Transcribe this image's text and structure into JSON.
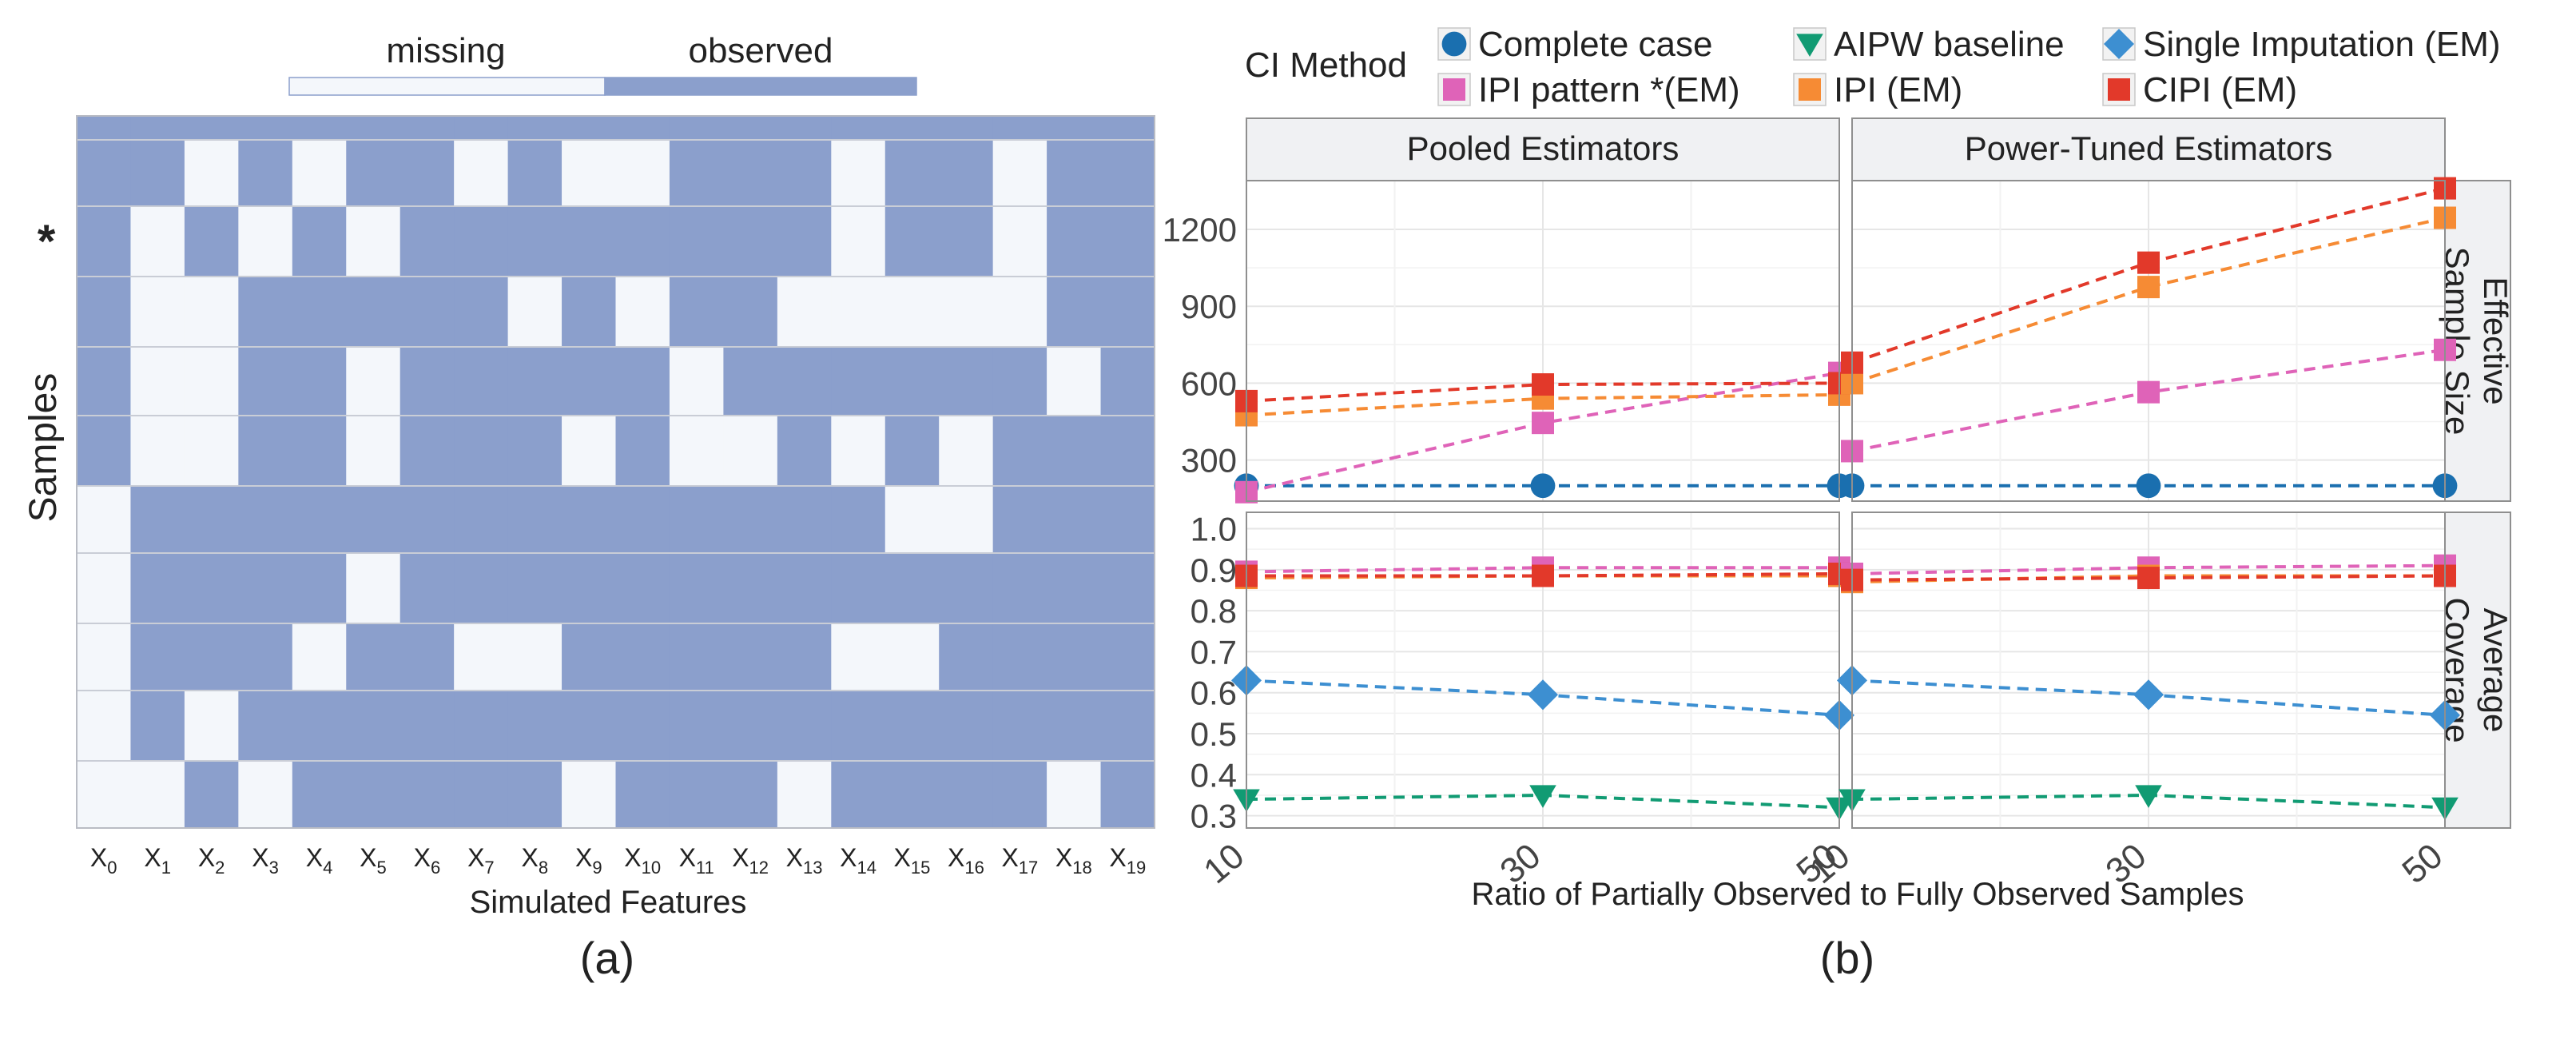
{
  "panel_a": {
    "label": "(a)",
    "legend": {
      "missing_label": "missing",
      "observed_label": "observed"
    },
    "ylabel": "Samples",
    "row_marker": "*",
    "xlabel": "Simulated Features",
    "features": [
      "X0",
      "X1",
      "X2",
      "X3",
      "X4",
      "X5",
      "X6",
      "X7",
      "X8",
      "X9",
      "X10",
      "X11",
      "X12",
      "X13",
      "X14",
      "X15",
      "X16",
      "X17",
      "X18",
      "X19"
    ],
    "colors": {
      "missing": "#f4f7fb",
      "observed": "#8b9fcc"
    }
  },
  "panel_b": {
    "label": "(b)",
    "legend_title": "CI Method",
    "xlabel": "Ratio of Partially Observed to Fully Observed Samples",
    "facet_cols": [
      "Pooled Estimators",
      "Power-Tuned Estimators"
    ],
    "facet_rows": [
      [
        "Effective",
        "Sample Size"
      ],
      [
        "Average",
        "Coverage"
      ]
    ]
  },
  "chart_data": [
    {
      "type": "heatmap",
      "title": "",
      "xlabel": "Simulated Features",
      "ylabel": "Samples",
      "x": [
        "X0",
        "X1",
        "X2",
        "X3",
        "X4",
        "X5",
        "X6",
        "X7",
        "X8",
        "X9",
        "X10",
        "X11",
        "X12",
        "X13",
        "X14",
        "X15",
        "X16",
        "X17",
        "X18",
        "X19"
      ],
      "legend": [
        "missing",
        "observed"
      ],
      "value_legend": {
        "0": "missing",
        "1": "observed"
      },
      "marked_row": 2,
      "values": [
        [
          1,
          1,
          1,
          1,
          1,
          1,
          1,
          1,
          1,
          1,
          1,
          1,
          1,
          1,
          1,
          1,
          1,
          1,
          1,
          1
        ],
        [
          1,
          1,
          0,
          1,
          0,
          1,
          1,
          0,
          1,
          0,
          0,
          1,
          1,
          1,
          0,
          1,
          1,
          0,
          1,
          1
        ],
        [
          1,
          0,
          1,
          0,
          1,
          0,
          1,
          1,
          1,
          1,
          1,
          1,
          1,
          1,
          0,
          1,
          1,
          0,
          1,
          1
        ],
        [
          1,
          0,
          0,
          1,
          1,
          1,
          1,
          1,
          0,
          1,
          0,
          1,
          1,
          0,
          0,
          0,
          0,
          0,
          1,
          1
        ],
        [
          1,
          0,
          0,
          1,
          1,
          0,
          1,
          1,
          1,
          1,
          1,
          0,
          1,
          1,
          1,
          1,
          1,
          1,
          0,
          1
        ],
        [
          1,
          0,
          0,
          1,
          1,
          0,
          1,
          1,
          1,
          0,
          1,
          0,
          0,
          1,
          0,
          1,
          0,
          1,
          1,
          1
        ],
        [
          0,
          1,
          1,
          1,
          1,
          1,
          1,
          1,
          1,
          1,
          1,
          1,
          1,
          1,
          1,
          0,
          0,
          1,
          1,
          1
        ],
        [
          0,
          1,
          1,
          1,
          1,
          0,
          1,
          1,
          1,
          1,
          1,
          1,
          1,
          1,
          1,
          1,
          1,
          1,
          1,
          1
        ],
        [
          0,
          1,
          1,
          1,
          0,
          1,
          1,
          0,
          0,
          1,
          1,
          1,
          1,
          1,
          0,
          0,
          1,
          1,
          1,
          1
        ],
        [
          0,
          1,
          0,
          1,
          1,
          1,
          1,
          1,
          1,
          1,
          1,
          1,
          1,
          1,
          1,
          1,
          1,
          1,
          1,
          1
        ],
        [
          0,
          0,
          1,
          0,
          1,
          1,
          1,
          1,
          1,
          0,
          1,
          1,
          1,
          0,
          1,
          1,
          1,
          1,
          0,
          1
        ]
      ]
    },
    {
      "type": "line",
      "title": "",
      "xlabel": "Ratio of Partially Observed to Fully Observed Samples",
      "x": [
        10,
        30,
        50
      ],
      "facets": {
        "cols": [
          "Pooled Estimators",
          "Power-Tuned Estimators"
        ],
        "rows": [
          "Effective Sample Size",
          "Average Coverage"
        ]
      },
      "legend_title": "CI Method",
      "legend_position": "top",
      "grid": true,
      "y_ranges": {
        "Effective Sample Size": [
          140,
          1390
        ],
        "Average Coverage": [
          0.27,
          1.04
        ]
      },
      "y_ticks": {
        "Effective Sample Size": [
          300,
          600,
          900,
          1200
        ],
        "Average Coverage": [
          0.3,
          0.4,
          0.5,
          0.6,
          0.7,
          0.8,
          0.9,
          1.0
        ]
      },
      "x_ticks": [
        10,
        30,
        50
      ],
      "series": [
        {
          "name": "Complete case",
          "color": "#1a6faf",
          "marker": "circle",
          "values": {
            "Effective Sample Size": {
              "Pooled Estimators": [
                200,
                200,
                200
              ],
              "Power-Tuned Estimators": [
                200,
                200,
                200
              ]
            }
          }
        },
        {
          "name": "IPI pattern *(EM)",
          "color": "#df63b8",
          "marker": "square",
          "values": {
            "Effective Sample Size": {
              "Pooled Estimators": [
                175,
                445,
                640
              ],
              "Power-Tuned Estimators": [
                335,
                565,
                730
              ]
            },
            "Average Coverage": {
              "Pooled Estimators": [
                0.895,
                0.905,
                0.905
              ],
              "Power-Tuned Estimators": [
                0.89,
                0.905,
                0.91
              ]
            }
          }
        },
        {
          "name": "AIPW baseline",
          "color": "#119b73",
          "marker": "triangle-down",
          "values": {
            "Average Coverage": {
              "Pooled Estimators": [
                0.34,
                0.35,
                0.32
              ],
              "Power-Tuned Estimators": [
                0.34,
                0.35,
                0.32
              ]
            }
          }
        },
        {
          "name": "IPI (EM)",
          "color": "#f68b34",
          "marker": "square",
          "values": {
            "Effective Sample Size": {
              "Pooled Estimators": [
                475,
                540,
                555
              ],
              "Power-Tuned Estimators": [
                600,
                975,
                1245
              ]
            },
            "Average Coverage": {
              "Pooled Estimators": [
                0.88,
                0.885,
                0.885
              ],
              "Power-Tuned Estimators": [
                0.87,
                0.885,
                0.885
              ]
            }
          }
        },
        {
          "name": "Single Imputation (EM)",
          "color": "#3d8fd1",
          "marker": "diamond",
          "values": {
            "Average Coverage": {
              "Pooled Estimators": [
                0.63,
                0.595,
                0.545
              ],
              "Power-Tuned Estimators": [
                0.63,
                0.595,
                0.545
              ]
            }
          }
        },
        {
          "name": "CIPI (EM)",
          "color": "#e2392a",
          "marker": "square",
          "values": {
            "Effective Sample Size": {
              "Pooled Estimators": [
                530,
                595,
                600
              ],
              "Power-Tuned Estimators": [
                680,
                1070,
                1360
              ]
            },
            "Average Coverage": {
              "Pooled Estimators": [
                0.885,
                0.885,
                0.89
              ],
              "Power-Tuned Estimators": [
                0.875,
                0.88,
                0.885
              ]
            }
          }
        }
      ]
    }
  ]
}
